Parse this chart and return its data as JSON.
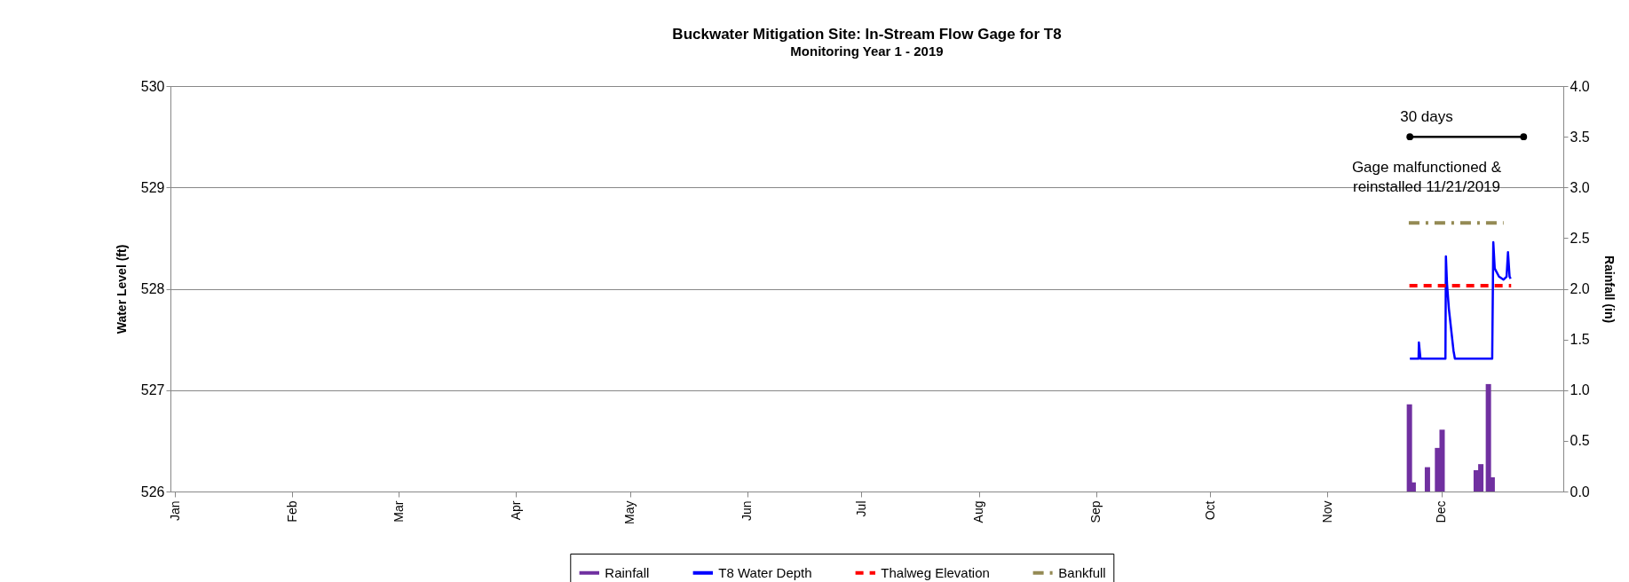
{
  "chart_data": {
    "type": "line",
    "title": "Buckwater Mitigation Site:  In-Stream Flow Gage for T8",
    "subtitle": "Monitoring Year 1 - 2019",
    "ylabel": "Water Level (ft)",
    "y2label": "Rainfall (in)",
    "xlim": [
      "2019-01-01",
      "2020-01-01"
    ],
    "xticks": [
      {
        "value": "2019-01-01",
        "label": "Jan"
      },
      {
        "value": "2019-02-01",
        "label": "Feb"
      },
      {
        "value": "2019-03-01",
        "label": "Mar"
      },
      {
        "value": "2019-04-01",
        "label": "Apr"
      },
      {
        "value": "2019-05-01",
        "label": "May"
      },
      {
        "value": "2019-06-01",
        "label": "Jun"
      },
      {
        "value": "2019-07-01",
        "label": "Jul"
      },
      {
        "value": "2019-08-01",
        "label": "Aug"
      },
      {
        "value": "2019-09-01",
        "label": "Sep"
      },
      {
        "value": "2019-10-01",
        "label": "Oct"
      },
      {
        "value": "2019-11-01",
        "label": "Nov"
      },
      {
        "value": "2019-12-01",
        "label": "Dec"
      }
    ],
    "ylim": [
      526,
      530
    ],
    "yticks": [
      526,
      527,
      528,
      529,
      530
    ],
    "y2lim": [
      0,
      4
    ],
    "y2ticks": [
      {
        "value": 0,
        "label": "0.0"
      },
      {
        "value": 0.5,
        "label": "0.5"
      },
      {
        "value": 1,
        "label": "1.0"
      },
      {
        "value": 1.5,
        "label": "1.5"
      },
      {
        "value": 2,
        "label": "2.0"
      },
      {
        "value": 2.5,
        "label": "2.5"
      },
      {
        "value": 3,
        "label": "3.0"
      },
      {
        "value": 3.5,
        "label": "3.5"
      },
      {
        "value": 4,
        "label": "4.0"
      }
    ],
    "grid": "y",
    "legend": "bottom",
    "series": [
      {
        "name": "Rainfall",
        "type": "bar",
        "axis": "y2",
        "color": "#7030a0",
        "x": [
          "2019-11-22T14:00",
          "2019-11-23T14:00",
          "2019-11-27T08:00",
          "2019-11-30T00:00",
          "2019-12-01T05:00",
          "2019-12-10T05:00",
          "2019-12-11T10:00",
          "2019-12-13T10:00",
          "2019-12-14T10:00"
        ],
        "values": [
          0.86,
          0.09,
          0.24,
          0.43,
          0.61,
          0.21,
          0.27,
          1.06,
          0.14
        ]
      },
      {
        "name": "T8 Water Depth",
        "color": "#0000ff",
        "line_style": "solid",
        "x": [
          "2019-11-22T17:00",
          "2019-11-25T00:00",
          "2019-11-25T02:00",
          "2019-11-25T12:00",
          "2019-12-02T02:00",
          "2019-12-02T05:00",
          "2019-12-02T12:00",
          "2019-12-03T00:00",
          "2019-12-04T05:00",
          "2019-12-04T14:00",
          "2019-12-14T10:00",
          "2019-12-14T17:00",
          "2019-12-15T02:00",
          "2019-12-16T05:00",
          "2019-12-17T10:00",
          "2019-12-18T05:00",
          "2019-12-18T14:00",
          "2019-12-19T00:00",
          "2019-12-19T07:00"
        ],
        "values": [
          527.31,
          527.31,
          527.47,
          527.31,
          527.31,
          528.32,
          528.05,
          527.8,
          527.39,
          527.31,
          527.31,
          528.46,
          528.2,
          528.12,
          528.09,
          528.12,
          528.36,
          528.12,
          528.1
        ]
      },
      {
        "name": "Thalweg Elevation",
        "color": "#ff0000",
        "line_style": "dashed",
        "x": [
          "2019-11-22T14:00",
          "2019-12-19T10:00"
        ],
        "values": [
          528.03,
          528.03
        ]
      },
      {
        "name": "Bankfull",
        "color": "#948a54",
        "line_style": "dashdot",
        "x": [
          "2019-11-22T10:00",
          "2019-12-17T10:00"
        ],
        "values": [
          528.65,
          528.65
        ]
      },
      {
        "color": "#000000",
        "line_style": "solid",
        "marker": "circle",
        "x": [
          "2019-11-22T17:00",
          "2019-12-22T17:00"
        ],
        "values": [
          529.5,
          529.5
        ]
      }
    ],
    "annotations": [
      "30 days",
      "Gage malfunctioned &\nreinstalled 11/21/2019"
    ]
  }
}
